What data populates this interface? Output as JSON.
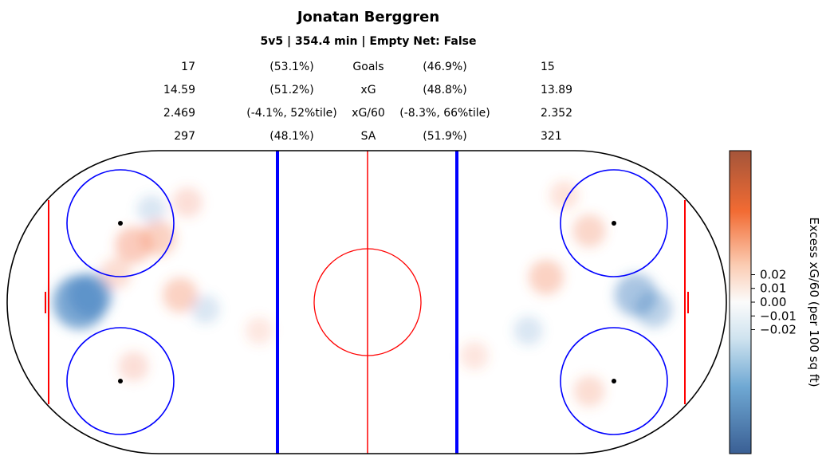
{
  "chart_data": {
    "type": "heatmap",
    "title": "Jonatan Berggren",
    "subtitle": "5v5 | 354.4 min | Empty Net: False",
    "stats_table": [
      {
        "label": "Goals",
        "left_value": "17",
        "left_pct": "(53.1%)",
        "right_pct": "(46.9%)",
        "right_value": "15"
      },
      {
        "label": "xG",
        "left_value": "14.59",
        "left_pct": "(51.2%)",
        "right_pct": "(48.8%)",
        "right_value": "13.89"
      },
      {
        "label": "xG/60",
        "left_value": "2.469",
        "left_pct": "(-4.1%, 52%tile)",
        "right_pct": "(-8.3%, 66%tile)",
        "right_value": "2.352"
      },
      {
        "label": "SA",
        "left_value": "297",
        "left_pct": "(48.1%)",
        "right_pct": "(51.9%)",
        "right_value": "321"
      }
    ],
    "colorbar": {
      "label": "Excess xG/60 (per 100 sq ft)",
      "ticks": [
        0.02,
        0.01,
        0.0,
        -0.01,
        -0.02
      ],
      "tick_labels": [
        "0.02",
        "0.01",
        "0.00",
        "−0.01",
        "−0.02"
      ],
      "colormap": "blue-white-orange diverging",
      "low_color": "#3a5f94",
      "high_color": "#a4553a"
    },
    "colors": {
      "boards": "#000000",
      "blue_line": "#0000ff",
      "red_line": "#ff0000",
      "positive": "#f26a3c",
      "negative": "#3f7fbf"
    },
    "hotspots": [
      {
        "x": -80,
        "y": 0,
        "value": -0.03
      },
      {
        "x": -77,
        "y": 2,
        "value": -0.02
      },
      {
        "x": -70,
        "y": 8,
        "value": 0.006
      },
      {
        "x": -65,
        "y": 16,
        "value": 0.012
      },
      {
        "x": -58,
        "y": 18,
        "value": 0.01
      },
      {
        "x": -52,
        "y": 2,
        "value": 0.01
      },
      {
        "x": -50,
        "y": 28,
        "value": 0.005
      },
      {
        "x": -60,
        "y": 26,
        "value": -0.004
      },
      {
        "x": -65,
        "y": -18,
        "value": 0.005
      },
      {
        "x": -45,
        "y": -2,
        "value": -0.004
      },
      {
        "x": -30,
        "y": -8,
        "value": 0.002
      },
      {
        "x": 62,
        "y": 20,
        "value": 0.008
      },
      {
        "x": 50,
        "y": 7,
        "value": 0.01
      },
      {
        "x": 75,
        "y": 2,
        "value": -0.018
      },
      {
        "x": 80,
        "y": -2,
        "value": -0.012
      },
      {
        "x": 62,
        "y": -25,
        "value": 0.006
      },
      {
        "x": 30,
        "y": -15,
        "value": 0.003
      },
      {
        "x": 45,
        "y": -8,
        "value": -0.004
      },
      {
        "x": 55,
        "y": 30,
        "value": 0.004
      }
    ]
  }
}
